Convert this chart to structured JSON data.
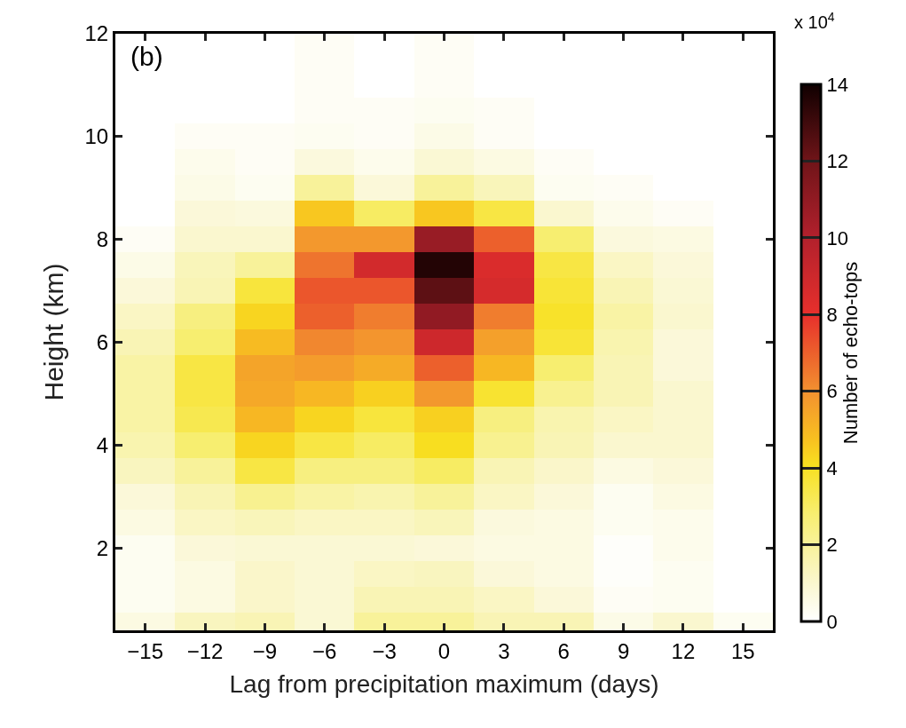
{
  "chart_data": {
    "type": "heatmap",
    "xlabel": "Lag from precipitation maximum (days)",
    "ylabel": "Height (km)",
    "clabel": "Number of echo-tops",
    "annotations": [
      "(b)",
      "x 10$^{4}$"
    ],
    "x": [
      -15,
      -12,
      -9,
      -6,
      -3,
      0,
      3,
      6,
      9,
      12,
      15
    ],
    "y": [
      12.0,
      11.5,
      11.0,
      10.5,
      10.0,
      9.5,
      9.0,
      8.5,
      8.0,
      7.5,
      7.0,
      6.5,
      6.0,
      5.5,
      5.0,
      4.5,
      4.0,
      3.5,
      3.0,
      2.5,
      2.0,
      1.5,
      1.0,
      0.5
    ],
    "cells": [
      [
        null,
        null,
        null,
        0.2,
        null,
        0.2,
        null,
        null,
        null,
        null,
        null
      ],
      [
        null,
        null,
        null,
        0.2,
        null,
        0.2,
        null,
        null,
        null,
        null,
        null
      ],
      [
        null,
        null,
        null,
        0.2,
        null,
        0.2,
        null,
        null,
        null,
        null,
        null
      ],
      [
        null,
        null,
        null,
        0.2,
        0.2,
        0.3,
        0.2,
        null,
        null,
        null,
        null
      ],
      [
        null,
        0.2,
        0.2,
        0.3,
        0.2,
        0.5,
        0.2,
        null,
        null,
        null,
        null
      ],
      [
        null,
        0.4,
        0.2,
        0.7,
        0.4,
        0.9,
        0.6,
        0.2,
        null,
        null,
        null
      ],
      [
        null,
        0.5,
        0.3,
        2.0,
        0.8,
        2.0,
        1.4,
        0.3,
        0.2,
        null,
        null
      ],
      [
        null,
        0.8,
        0.7,
        4.6,
        3.0,
        4.6,
        3.5,
        1.0,
        0.4,
        0.2,
        null
      ],
      [
        0.2,
        1.0,
        1.0,
        5.8,
        5.8,
        10.8,
        7.0,
        2.8,
        0.7,
        0.6,
        null
      ],
      [
        0.5,
        1.4,
        2.0,
        6.6,
        8.8,
        13.6,
        8.5,
        3.5,
        1.2,
        0.8,
        null
      ],
      [
        0.8,
        1.5,
        3.6,
        7.2,
        7.2,
        12.4,
        8.7,
        3.7,
        1.5,
        0.9,
        null
      ],
      [
        1.2,
        2.5,
        4.3,
        7.0,
        6.4,
        11.0,
        6.4,
        3.9,
        1.8,
        1.0,
        null
      ],
      [
        1.5,
        2.8,
        4.9,
        6.2,
        5.9,
        9.0,
        5.6,
        3.7,
        1.6,
        0.8,
        null
      ],
      [
        1.8,
        3.5,
        5.5,
        5.7,
        5.3,
        7.0,
        5.0,
        2.8,
        1.5,
        0.8,
        null
      ],
      [
        1.8,
        3.5,
        5.4,
        5.0,
        4.4,
        5.8,
        3.8,
        2.2,
        1.5,
        1.0,
        null
      ],
      [
        1.8,
        3.3,
        5.0,
        4.3,
        3.6,
        4.4,
        2.5,
        1.6,
        1.2,
        1.0,
        null
      ],
      [
        1.6,
        2.8,
        4.3,
        3.5,
        3.0,
        4.1,
        2.2,
        1.5,
        1.0,
        1.0,
        null
      ],
      [
        1.3,
        2.0,
        3.5,
        2.5,
        2.5,
        3.0,
        1.5,
        1.1,
        0.6,
        0.8,
        null
      ],
      [
        0.8,
        1.5,
        2.2,
        1.8,
        1.6,
        2.0,
        1.2,
        0.8,
        0.3,
        0.6,
        null
      ],
      [
        0.6,
        1.2,
        1.4,
        1.2,
        1.2,
        1.4,
        0.7,
        0.6,
        0.3,
        0.4,
        null
      ],
      [
        0.3,
        0.8,
        0.9,
        0.9,
        0.9,
        0.8,
        0.6,
        0.6,
        0.1,
        0.4,
        null
      ],
      [
        0.3,
        0.6,
        1.1,
        0.9,
        1.2,
        1.3,
        0.8,
        0.6,
        0.1,
        0.3,
        null
      ],
      [
        0.3,
        0.6,
        1.1,
        0.9,
        1.5,
        1.5,
        1.2,
        0.8,
        0.2,
        0.3,
        null
      ],
      [
        0.6,
        1.3,
        1.5,
        0.9,
        2.0,
        2.0,
        1.5,
        1.5,
        0.5,
        1.0,
        0.3
      ]
    ],
    "clim": [
      0,
      14
    ],
    "cticks": [
      0,
      2,
      4,
      6,
      8,
      10,
      12,
      14
    ],
    "xlim": [
      -16.5,
      16.5
    ],
    "xticks": [
      {
        "value": -15,
        "label": "−15"
      },
      {
        "value": -12,
        "label": "−12"
      },
      {
        "value": -9,
        "label": "−9"
      },
      {
        "value": -6,
        "label": "−6"
      },
      {
        "value": -3,
        "label": "−3"
      },
      0,
      3,
      6,
      9,
      12,
      15
    ],
    "ylim": [
      0.4,
      12
    ],
    "yticks": [
      2,
      4,
      6,
      8,
      10,
      12
    ]
  }
}
